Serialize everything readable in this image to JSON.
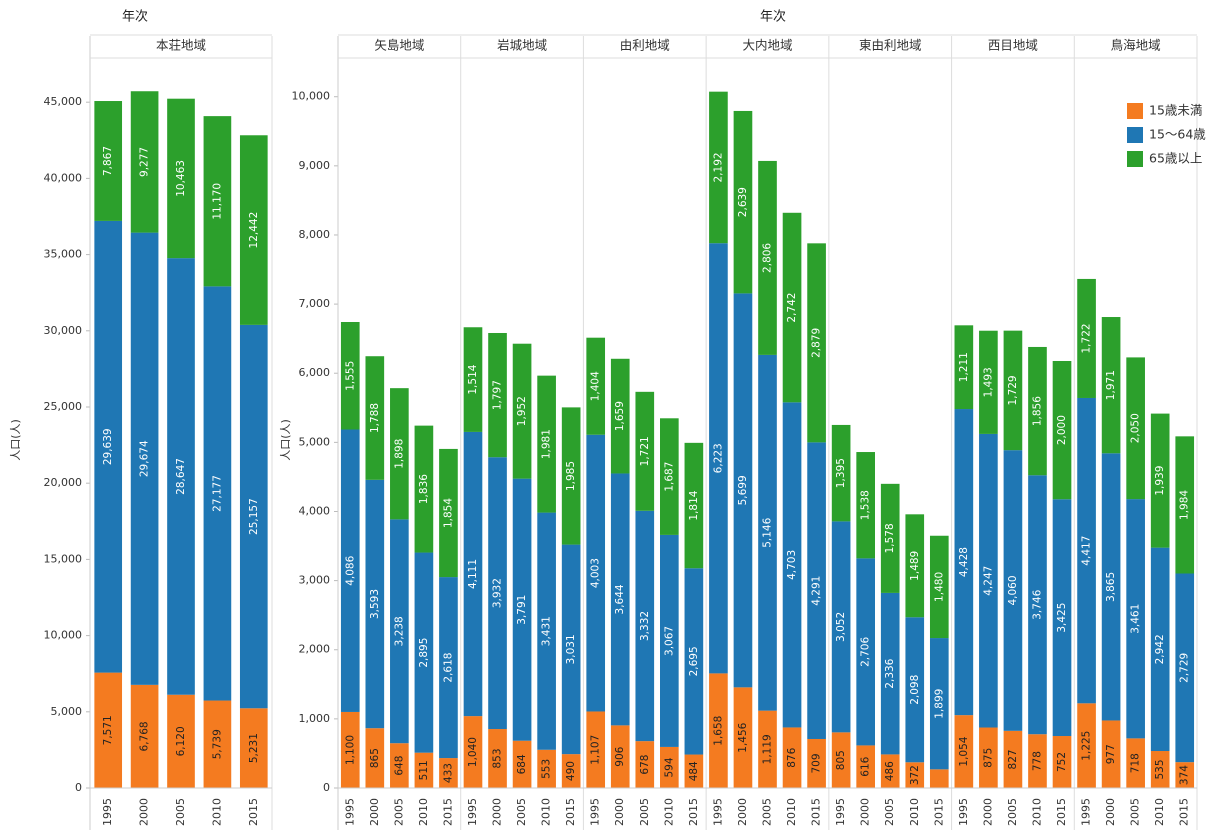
{
  "chart_data": [
    {
      "type": "bar",
      "stacked": true,
      "x_header": "年次",
      "y_label": "人口(人)",
      "groups": [
        "本荘地域"
      ],
      "categories": [
        "1995",
        "2000",
        "2005",
        "2010",
        "2015"
      ],
      "ylim": [
        0,
        47900
      ],
      "yticks": [
        0,
        {
          "value": 5000,
          "label": "5,000"
        },
        {
          "value": 10000,
          "label": "10,000"
        },
        {
          "value": 15000,
          "label": "15,000"
        },
        {
          "value": 20000,
          "label": "20,000"
        },
        {
          "value": 25000,
          "label": "25,000"
        },
        {
          "value": 30000,
          "label": "30,000"
        },
        {
          "value": 35000,
          "label": "35,000"
        },
        {
          "value": 40000,
          "label": "40,000"
        },
        {
          "value": 45000,
          "label": "45,000"
        }
      ],
      "series": [
        {
          "color": "#f47b20",
          "values": [
            7571,
            6768,
            6120,
            5739,
            5231
          ],
          "value_labels": [
            "7,571",
            "6,768",
            "6,120",
            "5,739",
            "5,231"
          ]
        },
        {
          "color": "#1f77b4",
          "values": [
            29639,
            29674,
            28647,
            27177,
            25157
          ],
          "value_labels": [
            "29,639",
            "29,674",
            "28,647",
            "27,177",
            "25,157"
          ]
        },
        {
          "color": "#2ca02c",
          "values": [
            7867,
            9277,
            10463,
            11170,
            12442
          ],
          "value_labels": [
            "7,867",
            "9,277",
            "10,463",
            "11,170",
            "12,442"
          ]
        }
      ]
    },
    {
      "type": "bar",
      "stacked": true,
      "x_header": "年次",
      "y_label": "人口(人)",
      "groups": [
        "矢島地域",
        "岩城地域",
        "由利地域",
        "大内地域",
        "東由利地域",
        "西目地域",
        "鳥海地域"
      ],
      "categories": [
        "1995",
        "2000",
        "2005",
        "2010",
        "2015",
        "1995",
        "2000",
        "2005",
        "2010",
        "2015",
        "1995",
        "2000",
        "2005",
        "2010",
        "2015",
        "1995",
        "2000",
        "2005",
        "2010",
        "2015",
        "1995",
        "2000",
        "2005",
        "2010",
        "2015",
        "1995",
        "2000",
        "2005",
        "2010",
        "2015",
        "1995",
        "2000",
        "2005",
        "2010",
        "2015"
      ],
      "ylim": [
        0,
        10560
      ],
      "yticks": [
        0,
        {
          "value": 1000,
          "label": "1,000"
        },
        {
          "value": 2000,
          "label": "2,000"
        },
        {
          "value": 3000,
          "label": "3,000"
        },
        {
          "value": 4000,
          "label": "4,000"
        },
        {
          "value": 5000,
          "label": "5,000"
        },
        {
          "value": 6000,
          "label": "6,000"
        },
        {
          "value": 7000,
          "label": "7,000"
        },
        {
          "value": 8000,
          "label": "8,000"
        },
        {
          "value": 9000,
          "label": "9,000"
        },
        {
          "value": 10000,
          "label": "10,000"
        }
      ],
      "legend": "top-right",
      "series": [
        {
          "name": "15歳未満",
          "color": "#f47b20",
          "values": [
            1100,
            865,
            648,
            511,
            433,
            1040,
            853,
            684,
            553,
            490,
            1107,
            906,
            678,
            594,
            484,
            1658,
            1456,
            1119,
            876,
            709,
            805,
            616,
            486,
            372,
            270,
            1054,
            875,
            827,
            778,
            752,
            1225,
            977,
            718,
            535,
            374
          ],
          "value_labels": [
            "1,100",
            "865",
            "648",
            "511",
            "433",
            "1,040",
            "853",
            "684",
            "553",
            "490",
            "1,107",
            "906",
            "678",
            "594",
            "484",
            "1,658",
            "1,456",
            "1,119",
            "876",
            "709",
            "805",
            "616",
            "486",
            "372",
            null,
            "1,054",
            "875",
            "827",
            "778",
            "752",
            "1,225",
            "977",
            "718",
            "535",
            "374"
          ]
        },
        {
          "name": "15〜64歳",
          "color": "#1f77b4",
          "values": [
            4086,
            3593,
            3238,
            2895,
            2618,
            4111,
            3932,
            3791,
            3431,
            3031,
            4003,
            3644,
            3332,
            3067,
            2695,
            6223,
            5699,
            5146,
            4703,
            4291,
            3052,
            2706,
            2336,
            2098,
            1899,
            4428,
            4247,
            4060,
            3746,
            3425,
            4417,
            3865,
            3461,
            2942,
            2729
          ],
          "value_labels": [
            "4,086",
            "3,593",
            "3,238",
            "2,895",
            "2,618",
            "4,111",
            "3,932",
            "3,791",
            "3,431",
            "3,031",
            "4,003",
            "3,644",
            "3,332",
            "3,067",
            "2,695",
            "6,223",
            "5,699",
            "5,146",
            "4,703",
            "4,291",
            "3,052",
            "2,706",
            "2,336",
            "2,098",
            "1,899",
            "4,428",
            "4,247",
            "4,060",
            "3,746",
            "3,425",
            "4,417",
            "3,865",
            "3,461",
            "2,942",
            "2,729"
          ]
        },
        {
          "name": "65歳以上",
          "color": "#2ca02c",
          "values": [
            1555,
            1788,
            1898,
            1836,
            1854,
            1514,
            1797,
            1952,
            1981,
            1985,
            1404,
            1659,
            1721,
            1687,
            1814,
            2192,
            2639,
            2806,
            2742,
            2879,
            1395,
            1538,
            1578,
            1489,
            1480,
            1211,
            1493,
            1729,
            1856,
            2000,
            1722,
            1971,
            2050,
            1939,
            1984
          ],
          "value_labels": [
            "1,555",
            "1,788",
            "1,898",
            "1,836",
            "1,854",
            "1,514",
            "1,797",
            "1,952",
            "1,981",
            "1,985",
            "1,404",
            "1,659",
            "1,721",
            "1,687",
            "1,814",
            "2,192",
            "2,639",
            "2,806",
            "2,742",
            "2,879",
            "1,395",
            "1,538",
            "1,578",
            "1,489",
            "1,480",
            "1,211",
            "1,493",
            "1,729",
            "1,856",
            "2,000",
            "1,722",
            "1,971",
            "2,050",
            "1,939",
            "1,984"
          ]
        }
      ]
    }
  ]
}
